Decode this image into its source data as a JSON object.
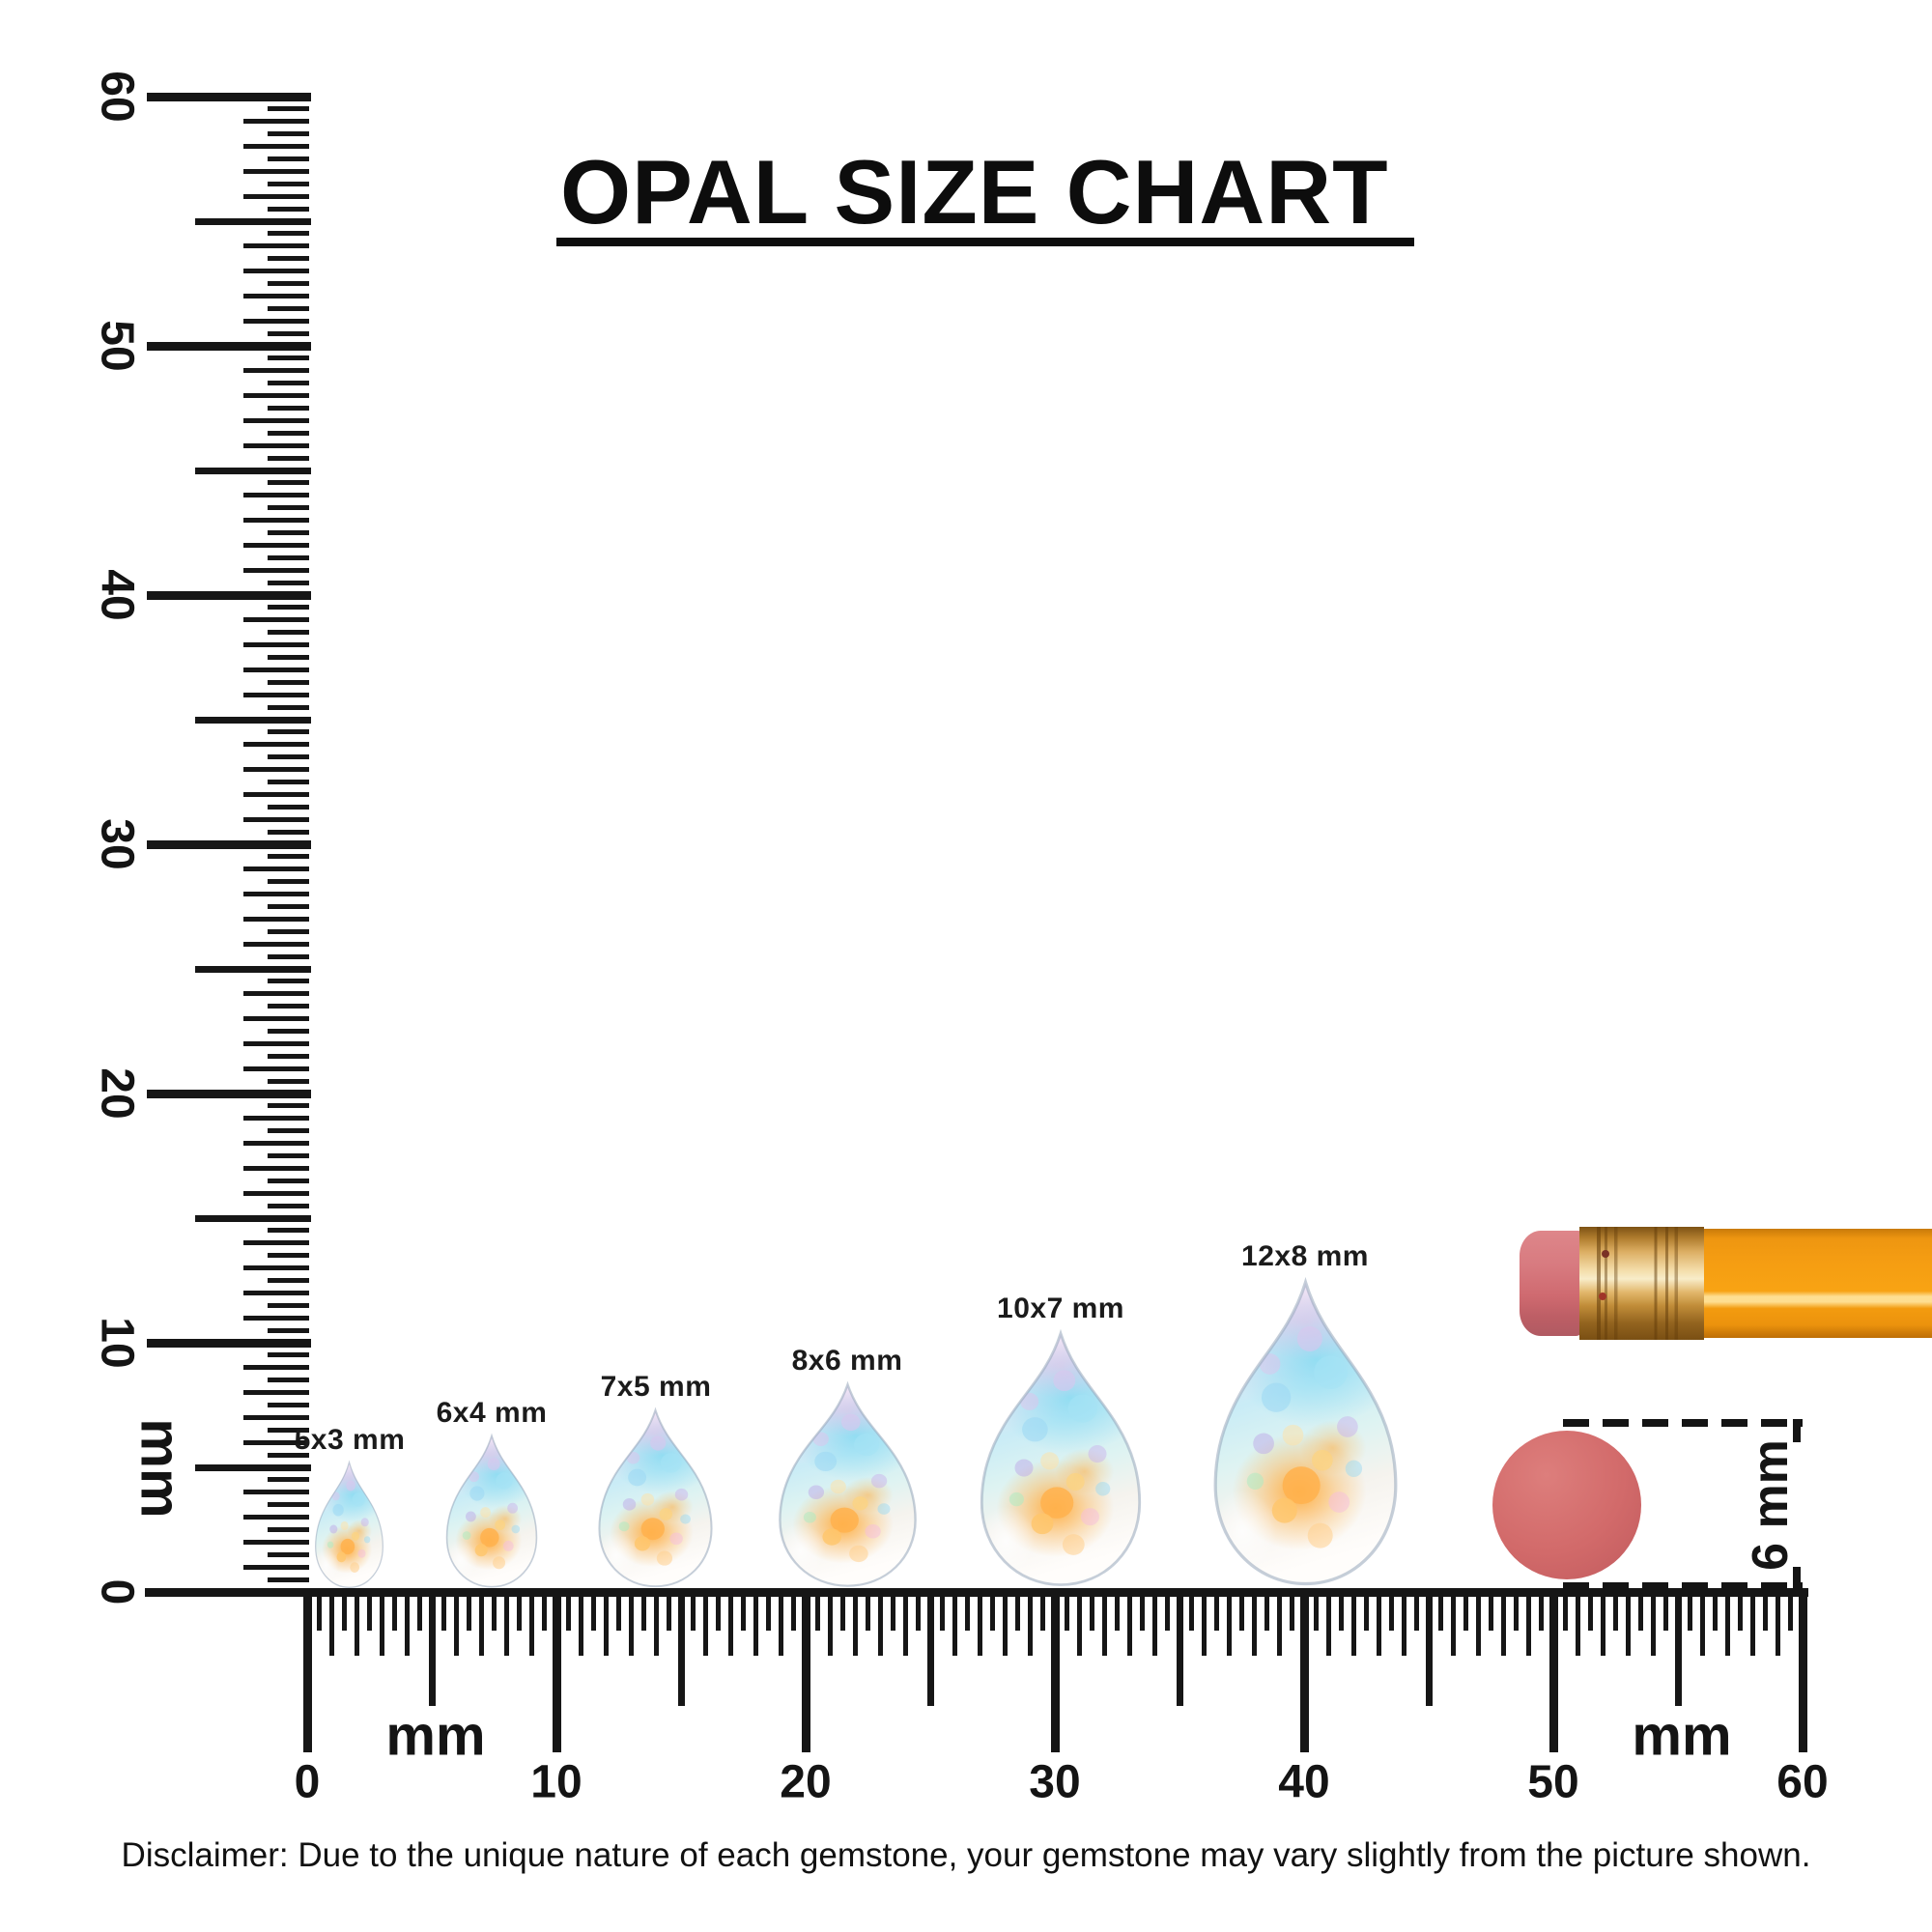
{
  "title": "OPAL SIZE CHART",
  "rulers": {
    "unit": "mm",
    "vertical": {
      "tick_labels": [
        "60",
        "50",
        "40",
        "30",
        "20",
        "10",
        "0"
      ],
      "unit_label": "mm"
    },
    "horizontal": {
      "tick_labels": [
        "0",
        "10",
        "20",
        "30",
        "40",
        "50",
        "60"
      ],
      "unit_label_left": "mm",
      "unit_label_right": "mm"
    }
  },
  "opals": [
    {
      "label": "5x3 mm"
    },
    {
      "label": "6x4 mm"
    },
    {
      "label": "7x5 mm"
    },
    {
      "label": "8x6 mm"
    },
    {
      "label": "10x7 mm"
    },
    {
      "label": "12x8 mm"
    }
  ],
  "measurement": {
    "label": "6 mm"
  },
  "disclaimer": "Disclaimer: Due to the unique nature of each gemstone, your gemstone may vary slightly from the picture shown.",
  "colors": {
    "ink": "#141414",
    "disc": "#d26a6a",
    "pencil_body": "#f6a013",
    "pencil_eraser": "#d47479",
    "pencil_ferrule": "#d9a558",
    "opal_flash_orange": "#ffb24d",
    "opal_flash_blue": "#9fdff0"
  },
  "chart_data": {
    "type": "table",
    "title": "OPAL SIZE CHART",
    "unit": "mm",
    "categories": [
      "5x3 mm",
      "6x4 mm",
      "7x5 mm",
      "8x6 mm",
      "10x7 mm",
      "12x8 mm"
    ],
    "series": [
      {
        "name": "length_mm",
        "values": [
          5,
          6,
          7,
          8,
          10,
          12
        ]
      },
      {
        "name": "width_mm",
        "values": [
          3,
          4,
          5,
          6,
          7,
          8
        ]
      }
    ],
    "shape": "pear cabochon",
    "axes": {
      "horizontal_ruler_range_mm": [
        0,
        60
      ],
      "vertical_ruler_range_mm": [
        0,
        60
      ],
      "ruler_resolution_mm": 0.5,
      "major_tick_every_mm": 10,
      "medium_tick_every_mm": 5
    },
    "reference_objects": [
      {
        "name": "round-eraser-disc",
        "label": "6 mm",
        "diameter_mm": 6
      },
      {
        "name": "pencil-with-eraser"
      }
    ],
    "legend": false,
    "grid": false
  }
}
